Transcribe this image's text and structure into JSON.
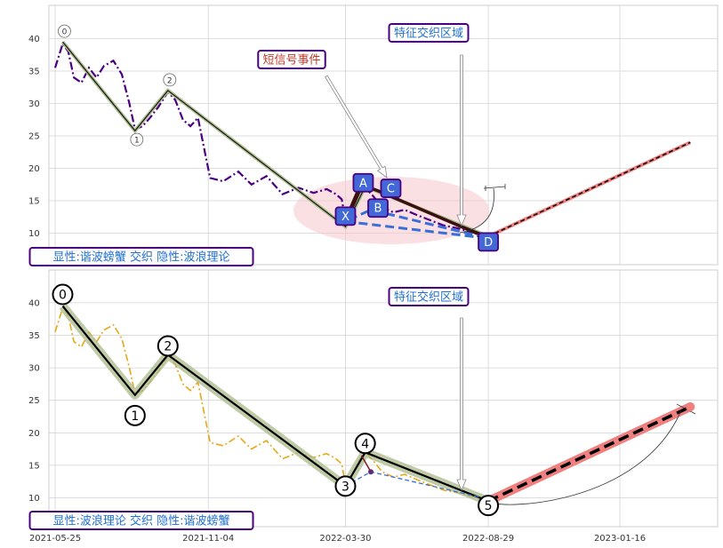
{
  "colors": {
    "price_top": "#4b0082",
    "price_bottom": "#e6a817",
    "wave_band": "#a9b98a",
    "wave_line": "#000000",
    "pattern_blue": "#3a6fd8",
    "marker_fill": "#4267d6",
    "forecast_pink": "#f08080",
    "ellipse_fill": "#f5c6cc",
    "box_border": "#4b0082",
    "box_text_blue": "#1f6fd1",
    "box_text_red": "#c0392b",
    "grid": "#d3d3d3"
  },
  "chart_data": [
    {
      "type": "line",
      "panel": "top",
      "x_axis_type": "date",
      "ylim": [
        5,
        45
      ],
      "yticks": [
        10,
        15,
        20,
        25,
        30,
        35,
        40
      ],
      "xticks": [
        "2021-05-25",
        "2021-11-04",
        "2022-03-30",
        "2022-08-29",
        "2023-01-16"
      ],
      "grid": true,
      "series": [
        {
          "role": "price",
          "style": "dash-dot",
          "points": [
            [
              "2021-05-25",
              35.5
            ],
            [
              "2021-06-02",
              39.2
            ],
            [
              "2021-06-08",
              38.0
            ],
            [
              "2021-06-14",
              34.0
            ],
            [
              "2021-06-22",
              33.2
            ],
            [
              "2021-06-30",
              35.5
            ],
            [
              "2021-07-08",
              34.0
            ],
            [
              "2021-07-16",
              35.8
            ],
            [
              "2021-07-26",
              36.6
            ],
            [
              "2021-08-04",
              34.5
            ],
            [
              "2021-08-12",
              30.0
            ],
            [
              "2021-08-18",
              26.0
            ],
            [
              "2021-08-26",
              26.5
            ],
            [
              "2021-09-03",
              27.8
            ],
            [
              "2021-09-12",
              29.5
            ],
            [
              "2021-09-22",
              31.8
            ],
            [
              "2021-09-30",
              30.5
            ],
            [
              "2021-10-08",
              27.5
            ],
            [
              "2021-10-16",
              26.5
            ],
            [
              "2021-10-24",
              27.8
            ],
            [
              "2021-11-01",
              22.0
            ],
            [
              "2021-11-06",
              18.5
            ],
            [
              "2021-11-20",
              18.0
            ],
            [
              "2021-12-06",
              19.5
            ],
            [
              "2021-12-20",
              17.5
            ],
            [
              "2022-01-05",
              18.8
            ],
            [
              "2022-01-22",
              16.0
            ],
            [
              "2022-02-08",
              17.0
            ],
            [
              "2022-02-24",
              16.2
            ],
            [
              "2022-03-10",
              16.8
            ],
            [
              "2022-03-20",
              16.0
            ],
            [
              "2022-03-26",
              15.2
            ],
            [
              "2022-03-30",
              12.0
            ],
            [
              "2022-04-04",
              12.5
            ],
            [
              "2022-04-12",
              15.5
            ],
            [
              "2022-04-20",
              17.0
            ],
            [
              "2022-04-28",
              15.8
            ],
            [
              "2022-05-08",
              14.0
            ],
            [
              "2022-05-20",
              13.2
            ],
            [
              "2022-06-01",
              13.6
            ],
            [
              "2022-06-14",
              12.8
            ],
            [
              "2022-06-28",
              12.0
            ],
            [
              "2022-07-12",
              11.2
            ],
            [
              "2022-07-26",
              10.8
            ],
            [
              "2022-08-10",
              10.2
            ],
            [
              "2022-08-22",
              10.0
            ]
          ]
        },
        {
          "role": "wave",
          "points": [
            [
              "2021-06-02",
              39.5
            ],
            [
              "2021-08-18",
              25.8
            ],
            [
              "2021-09-22",
              32.0
            ],
            [
              "2022-03-30",
              11.0
            ],
            [
              "2022-04-20",
              17.2
            ],
            [
              "2022-08-29",
              9.5
            ]
          ]
        },
        {
          "role": "forecast",
          "points": [
            [
              "2022-08-29",
              9.5
            ],
            [
              "2023-04-01",
              24.0
            ]
          ]
        }
      ],
      "pivots": [
        {
          "label": "0",
          "x": "2021-06-02",
          "y": 39.5
        },
        {
          "label": "1",
          "x": "2021-08-18",
          "y": 25.8
        },
        {
          "label": "2",
          "x": "2021-09-22",
          "y": 32.0
        }
      ],
      "harmonic_points": [
        {
          "label": "X",
          "x": "2022-03-30",
          "y": 11.8
        },
        {
          "label": "A",
          "x": "2022-04-16",
          "y": 17.5
        },
        {
          "label": "B",
          "x": "2022-04-26",
          "y": 13.6
        },
        {
          "label": "C",
          "x": "2022-05-04",
          "y": 16.5
        },
        {
          "label": "D",
          "x": "2022-08-29",
          "y": 9.2
        }
      ],
      "annotations": {
        "top_box": "特征交织区域",
        "signal_box": "短信号事件",
        "footer_box": "显性:谐波螃蟹 交织 隐性:波浪理论"
      }
    },
    {
      "type": "line",
      "panel": "bottom",
      "x_axis_type": "date",
      "ylim": [
        5,
        45
      ],
      "yticks": [
        10,
        15,
        20,
        25,
        30,
        35,
        40
      ],
      "xticks": [
        "2021-05-25",
        "2021-11-04",
        "2022-03-30",
        "2022-08-29",
        "2023-01-16"
      ],
      "grid": true,
      "series": [
        {
          "role": "price",
          "style": "dash-dot",
          "points": [
            [
              "2021-05-25",
              35.5
            ],
            [
              "2021-06-02",
              39.2
            ],
            [
              "2021-06-08",
              38.0
            ],
            [
              "2021-06-14",
              34.0
            ],
            [
              "2021-06-22",
              33.2
            ],
            [
              "2021-06-30",
              35.5
            ],
            [
              "2021-07-08",
              34.0
            ],
            [
              "2021-07-16",
              35.8
            ],
            [
              "2021-07-26",
              36.6
            ],
            [
              "2021-08-04",
              34.5
            ],
            [
              "2021-08-12",
              30.0
            ],
            [
              "2021-08-18",
              26.0
            ],
            [
              "2021-08-26",
              26.5
            ],
            [
              "2021-09-03",
              27.8
            ],
            [
              "2021-09-12",
              29.5
            ],
            [
              "2021-09-22",
              31.8
            ],
            [
              "2021-09-30",
              30.5
            ],
            [
              "2021-10-08",
              27.5
            ],
            [
              "2021-10-16",
              26.5
            ],
            [
              "2021-10-24",
              27.8
            ],
            [
              "2021-11-01",
              22.0
            ],
            [
              "2021-11-06",
              18.5
            ],
            [
              "2021-11-20",
              18.0
            ],
            [
              "2021-12-06",
              19.5
            ],
            [
              "2021-12-20",
              17.5
            ],
            [
              "2022-01-05",
              18.8
            ],
            [
              "2022-01-22",
              16.0
            ],
            [
              "2022-02-08",
              17.0
            ],
            [
              "2022-02-24",
              16.2
            ],
            [
              "2022-03-10",
              16.8
            ],
            [
              "2022-03-20",
              16.0
            ],
            [
              "2022-03-26",
              15.2
            ],
            [
              "2022-03-30",
              12.0
            ],
            [
              "2022-04-04",
              12.5
            ],
            [
              "2022-04-12",
              15.5
            ],
            [
              "2022-04-20",
              17.0
            ],
            [
              "2022-04-28",
              15.8
            ],
            [
              "2022-05-08",
              14.0
            ],
            [
              "2022-05-20",
              13.2
            ],
            [
              "2022-06-01",
              13.6
            ],
            [
              "2022-06-14",
              12.8
            ],
            [
              "2022-06-28",
              12.0
            ],
            [
              "2022-07-12",
              11.2
            ],
            [
              "2022-07-26",
              10.8
            ],
            [
              "2022-08-10",
              10.2
            ],
            [
              "2022-08-22",
              10.0
            ]
          ]
        },
        {
          "role": "wave",
          "points": [
            [
              "2021-06-02",
              39.5
            ],
            [
              "2021-08-18",
              25.8
            ],
            [
              "2021-09-22",
              32.0
            ],
            [
              "2022-03-30",
              11.8
            ],
            [
              "2022-04-20",
              17.0
            ],
            [
              "2022-08-29",
              9.5
            ]
          ]
        },
        {
          "role": "forecast",
          "points": [
            [
              "2022-08-29",
              9.5
            ],
            [
              "2023-04-01",
              24.0
            ]
          ]
        }
      ],
      "pivots": [
        {
          "label": "0",
          "x": "2021-06-02",
          "y": 39.5
        },
        {
          "label": "1",
          "x": "2021-08-18",
          "y": 25.8
        },
        {
          "label": "2",
          "x": "2021-09-22",
          "y": 32.0
        },
        {
          "label": "3",
          "x": "2022-03-30",
          "y": 11.8
        },
        {
          "label": "4",
          "x": "2022-04-20",
          "y": 17.0
        },
        {
          "label": "5",
          "x": "2022-08-29",
          "y": 9.5
        }
      ],
      "annotations": {
        "top_box": "特征交织区域",
        "footer_box": "显性:波浪理论 交织 隐性:谐波螃蟹"
      }
    }
  ]
}
